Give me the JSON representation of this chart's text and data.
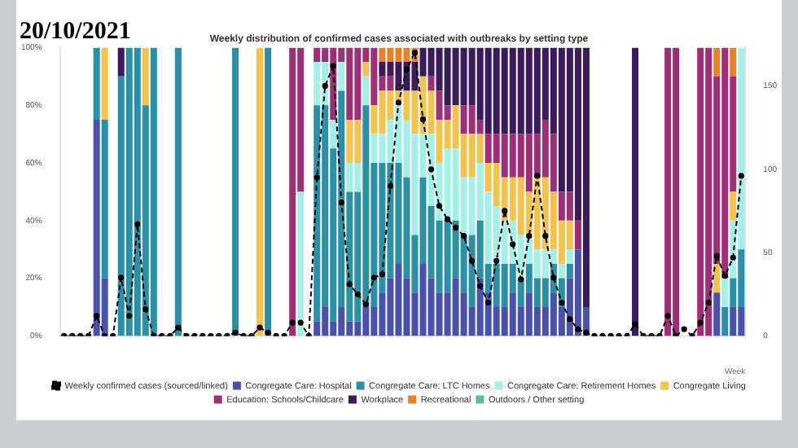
{
  "chart_data": {
    "type": "bar",
    "title": "Weekly distribution of confirmed cases associated with outbreaks by setting type",
    "xlabel": "Week",
    "annotations": [
      "20/10/2021"
    ],
    "stacked": true,
    "legend": "bottom",
    "categories": [
      null,
      null,
      null,
      null,
      null,
      null,
      null,
      null,
      null,
      null,
      null,
      null,
      null,
      null,
      null,
      null,
      null,
      null,
      null,
      null,
      null,
      null,
      null,
      null,
      null,
      null,
      null,
      null,
      null,
      null,
      null,
      null,
      null,
      null,
      null,
      null,
      null,
      null,
      null,
      null,
      null,
      null,
      null,
      null,
      null,
      null,
      null,
      null,
      null,
      null,
      null,
      null,
      null,
      null,
      null,
      null,
      null,
      null,
      null,
      null,
      null,
      null,
      null,
      null,
      null,
      null,
      null,
      null,
      null,
      null,
      null,
      null,
      null,
      null,
      null,
      null,
      null,
      null,
      null,
      null,
      null,
      null,
      null,
      null
    ],
    "ylim": [
      0,
      100
    ],
    "yticks": [
      {
        "value": 0,
        "label": "0%"
      },
      {
        "value": 20,
        "label": "20%"
      },
      {
        "value": 40,
        "label": "40%"
      },
      {
        "value": 60,
        "label": "60%"
      },
      {
        "value": 80,
        "label": "80%"
      },
      {
        "value": 100,
        "label": "100%"
      }
    ],
    "y2lim": [
      0,
      173
    ],
    "y2ticks": [
      0,
      50,
      100,
      150
    ],
    "series": [
      {
        "name": "Congregate Care: Hospital",
        "color": "#4a51a8",
        "values": [
          null,
          null,
          null,
          null,
          75,
          20,
          null,
          0,
          0,
          0,
          0,
          0,
          null,
          null,
          0,
          null,
          null,
          null,
          null,
          null,
          null,
          0,
          null,
          null,
          0,
          0,
          null,
          null,
          0,
          0,
          null,
          5,
          10,
          5,
          10,
          5,
          5,
          10,
          10,
          15,
          20,
          25,
          20,
          15,
          25,
          20,
          15,
          15,
          20,
          15,
          10,
          20,
          15,
          10,
          10,
          15,
          10,
          15,
          10,
          10,
          15,
          10,
          20,
          30,
          10,
          null,
          null,
          null,
          null,
          null,
          0,
          null,
          null,
          null,
          0,
          0,
          null,
          null,
          0,
          0,
          15,
          0,
          10,
          10
        ]
      },
      {
        "name": "Congregate Care: LTC Homes",
        "color": "#2b8fa6",
        "values": [
          null,
          null,
          null,
          null,
          25,
          55,
          null,
          90,
          100,
          100,
          80,
          100,
          null,
          null,
          100,
          null,
          null,
          null,
          null,
          null,
          null,
          100,
          null,
          null,
          0,
          100,
          null,
          null,
          0,
          0,
          null,
          75,
          70,
          60,
          75,
          45,
          45,
          70,
          50,
          45,
          40,
          35,
          35,
          20,
          30,
          25,
          25,
          25,
          20,
          20,
          25,
          20,
          10,
          15,
          15,
          10,
          10,
          10,
          10,
          10,
          10,
          10,
          5,
          0,
          0,
          null,
          null,
          null,
          null,
          null,
          0,
          null,
          null,
          null,
          0,
          0,
          null,
          null,
          0,
          0,
          0,
          10,
          10,
          20
        ]
      },
      {
        "name": "Congregate Care: Retirement Homes",
        "color": "#a6efe9",
        "values": [
          null,
          null,
          null,
          null,
          0,
          0,
          null,
          0,
          0,
          0,
          0,
          0,
          null,
          null,
          0,
          null,
          null,
          null,
          null,
          null,
          null,
          0,
          null,
          null,
          0,
          0,
          null,
          null,
          0,
          50,
          null,
          15,
          15,
          10,
          10,
          10,
          10,
          10,
          10,
          10,
          15,
          20,
          20,
          35,
          15,
          25,
          20,
          25,
          25,
          20,
          20,
          20,
          25,
          20,
          15,
          15,
          15,
          10,
          10,
          10,
          5,
          5,
          5,
          0,
          0,
          null,
          null,
          null,
          null,
          null,
          0,
          null,
          null,
          null,
          0,
          0,
          null,
          null,
          0,
          0,
          0,
          10,
          20,
          70
        ]
      },
      {
        "name": "Congregate Living",
        "color": "#f3c34f",
        "values": [
          null,
          null,
          null,
          null,
          0,
          25,
          null,
          0,
          0,
          0,
          20,
          0,
          null,
          null,
          0,
          null,
          null,
          null,
          null,
          null,
          null,
          0,
          null,
          null,
          100,
          0,
          null,
          null,
          0,
          0,
          null,
          0,
          0,
          0,
          0,
          15,
          15,
          5,
          10,
          15,
          10,
          5,
          10,
          15,
          20,
          15,
          15,
          10,
          15,
          15,
          15,
          10,
          10,
          15,
          15,
          15,
          20,
          15,
          25,
          25,
          20,
          15,
          10,
          0,
          0,
          null,
          null,
          null,
          null,
          null,
          0,
          null,
          null,
          null,
          0,
          0,
          null,
          null,
          0,
          0,
          10,
          0,
          10,
          0
        ]
      },
      {
        "name": "Education: Schools/Childcare",
        "color": "#9c2f78",
        "values": [
          null,
          null,
          null,
          null,
          0,
          0,
          null,
          0,
          0,
          0,
          0,
          0,
          null,
          null,
          0,
          null,
          null,
          null,
          null,
          null,
          null,
          0,
          null,
          null,
          0,
          0,
          null,
          null,
          100,
          50,
          null,
          5,
          5,
          25,
          5,
          25,
          25,
          5,
          20,
          5,
          5,
          0,
          0,
          0,
          0,
          5,
          10,
          5,
          0,
          10,
          10,
          5,
          10,
          10,
          15,
          15,
          15,
          20,
          15,
          20,
          20,
          10,
          10,
          10,
          0,
          null,
          null,
          null,
          null,
          null,
          0,
          null,
          null,
          null,
          100,
          100,
          null,
          null,
          100,
          100,
          65,
          80,
          40,
          0
        ]
      },
      {
        "name": "Workplace",
        "color": "#3a1b5e",
        "values": [
          null,
          null,
          null,
          null,
          0,
          0,
          null,
          10,
          0,
          0,
          0,
          0,
          null,
          null,
          0,
          null,
          null,
          null,
          null,
          null,
          null,
          0,
          null,
          null,
          0,
          0,
          null,
          null,
          0,
          0,
          null,
          0,
          0,
          0,
          0,
          0,
          0,
          0,
          0,
          5,
          5,
          10,
          10,
          10,
          10,
          10,
          15,
          20,
          20,
          20,
          20,
          25,
          30,
          30,
          30,
          30,
          30,
          30,
          30,
          25,
          30,
          50,
          50,
          60,
          90,
          null,
          null,
          null,
          null,
          null,
          100,
          null,
          null,
          null,
          0,
          0,
          null,
          null,
          0,
          0,
          0,
          0,
          0,
          0
        ]
      },
      {
        "name": "Recreational",
        "color": "#e8822a",
        "values": [
          null,
          null,
          null,
          null,
          0,
          0,
          null,
          0,
          0,
          0,
          0,
          0,
          null,
          null,
          0,
          null,
          null,
          null,
          null,
          null,
          null,
          0,
          null,
          null,
          0,
          0,
          null,
          null,
          0,
          0,
          null,
          0,
          0,
          0,
          0,
          0,
          0,
          0,
          0,
          5,
          5,
          5,
          5,
          5,
          0,
          0,
          0,
          0,
          0,
          0,
          0,
          0,
          0,
          0,
          0,
          0,
          0,
          0,
          0,
          0,
          0,
          0,
          0,
          0,
          0,
          null,
          null,
          null,
          null,
          null,
          0,
          null,
          null,
          null,
          0,
          0,
          null,
          null,
          0,
          0,
          10,
          0,
          10,
          0
        ]
      },
      {
        "name": "Outdoors / Other setting",
        "color": "#5db99b",
        "values": [
          null,
          null,
          null,
          null,
          0,
          0,
          null,
          0,
          0,
          0,
          0,
          0,
          null,
          null,
          0,
          null,
          null,
          null,
          null,
          null,
          null,
          0,
          null,
          null,
          0,
          0,
          null,
          null,
          0,
          0,
          null,
          0,
          0,
          0,
          0,
          0,
          0,
          0,
          0,
          0,
          0,
          0,
          0,
          0,
          0,
          0,
          0,
          0,
          0,
          0,
          0,
          0,
          0,
          0,
          0,
          0,
          0,
          0,
          0,
          0,
          0,
          0,
          0,
          0,
          0,
          null,
          null,
          null,
          null,
          null,
          0,
          null,
          null,
          null,
          0,
          0,
          null,
          null,
          0,
          0,
          0,
          0,
          0,
          0
        ]
      },
      {
        "name": "Weekly confirmed cases (sourced/linked)",
        "type": "line",
        "axis": "y2",
        "color": "#000000",
        "line_style": "dashed",
        "marker": "circle",
        "values": [
          0,
          0,
          0,
          0,
          12,
          0,
          0,
          35,
          12,
          67,
          16,
          0,
          0,
          0,
          5,
          0,
          0,
          0,
          0,
          0,
          0,
          2,
          0,
          0,
          5,
          2,
          0,
          0,
          8,
          8,
          0,
          95,
          150,
          162,
          80,
          31,
          25,
          19,
          35,
          37,
          90,
          140,
          160,
          170,
          130,
          100,
          78,
          70,
          65,
          60,
          45,
          30,
          20,
          45,
          75,
          55,
          34,
          60,
          96,
          60,
          35,
          20,
          10,
          4,
          2,
          0,
          0,
          0,
          0,
          0,
          7,
          0,
          0,
          0,
          12,
          0,
          4,
          0,
          8,
          20,
          48,
          36,
          47,
          96
        ]
      }
    ]
  }
}
